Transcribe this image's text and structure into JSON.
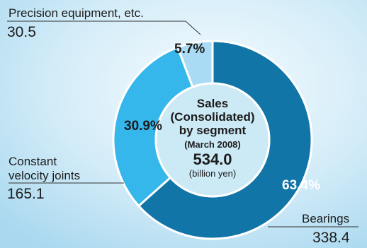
{
  "chart_data": {
    "type": "pie",
    "style": "donut",
    "segments": [
      {
        "name": "Bearings",
        "value": 338.4,
        "percent": 63.4,
        "percent_label": "63.4%",
        "value_label": "338.4",
        "color": "#1275a8"
      },
      {
        "name": "Constant velocity joints",
        "label_lines": [
          "Constant",
          "velocity joints"
        ],
        "value": 165.1,
        "percent": 30.9,
        "percent_label": "30.9%",
        "value_label": "165.1",
        "color": "#36b7eb"
      },
      {
        "name": "Precision equipment, etc.",
        "value": 30.5,
        "percent": 5.7,
        "percent_label": "5.7%",
        "value_label": "30.5",
        "color": "#a9dcf4"
      }
    ],
    "center": {
      "line1": "Sales",
      "line2": "(Consolidated)",
      "line3": "by segment",
      "line4": "(March 2008)",
      "total": "534.0",
      "unit": "(billion yen)"
    },
    "start_angle_deg": 0,
    "direction": "clockwise",
    "legend": "none"
  },
  "colors": {
    "background_top": "#f6fcff",
    "background_bottom": "#a9d8ef",
    "ring_border": "#ffffff",
    "center_disc": "#cce9f6",
    "leader_line": "#333333",
    "text": "#1c1c1c",
    "label_on_dark": "#ffffff"
  }
}
